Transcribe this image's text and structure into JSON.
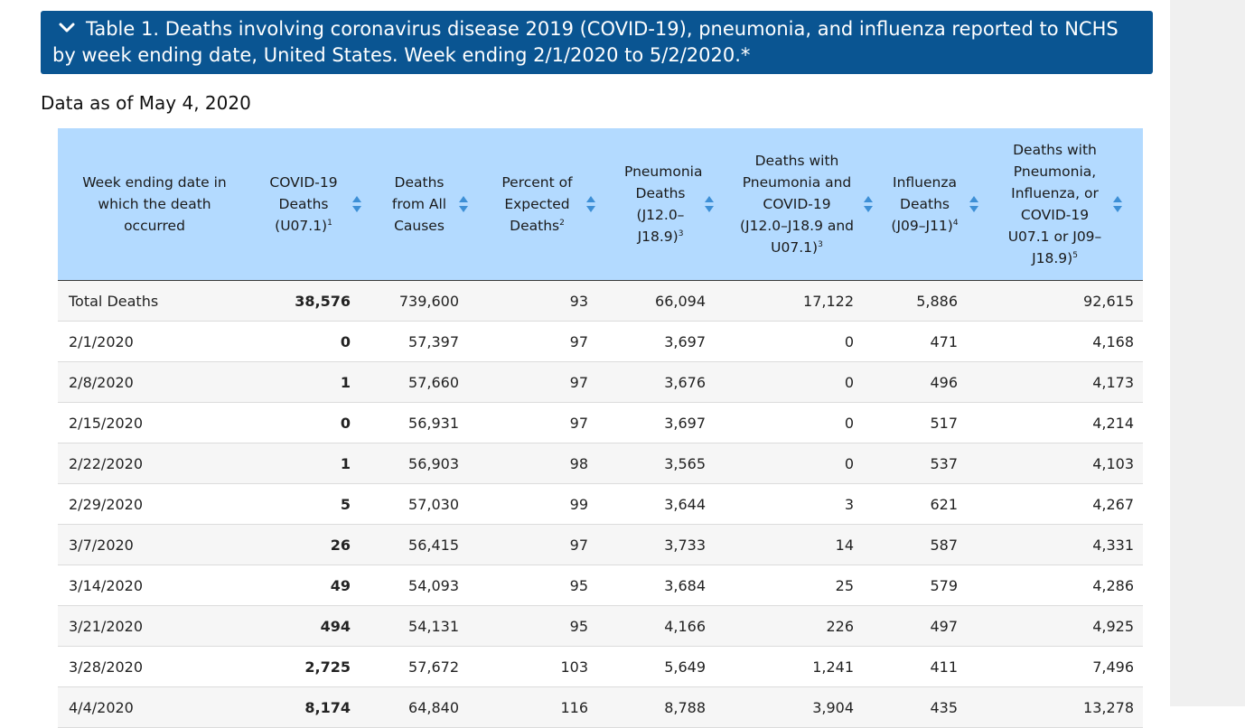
{
  "accordion": {
    "title": "Table 1. Deaths involving coronavirus disease 2019 (COVID-19), pneumonia, and influenza reported to NCHS by week ending date, United States. Week ending 2/1/2020 to 5/2/2020.*",
    "icon": "chevron-down-icon"
  },
  "data_as_of": "Data as of May 4, 2020",
  "table": {
    "headers": [
      {
        "text": "Week ending date in which the death occurred",
        "sup": "",
        "sortable": false
      },
      {
        "text": "COVID-19 Deaths (U07.1)",
        "sup": "1",
        "sortable": true
      },
      {
        "text": "Deaths from All Causes",
        "sup": "",
        "sortable": true
      },
      {
        "text": "Percent of Expected Deaths",
        "sup": "2",
        "sortable": true
      },
      {
        "text": "Pneumonia Deaths (J12.0–J18.9)",
        "sup": "3",
        "sortable": true
      },
      {
        "text": "Deaths with Pneumonia and COVID-19 (J12.0–J18.9 and U07.1)",
        "sup": "3",
        "sortable": true
      },
      {
        "text": "Influenza Deaths (J09–J11)",
        "sup": "4",
        "sortable": true
      },
      {
        "text": "Deaths with Pneumonia, Influenza, or COVID-19 U07.1 or J09–J18.9)",
        "sup": "5",
        "sortable": true
      }
    ],
    "rows": [
      [
        "Total Deaths",
        "38,576",
        "739,600",
        "93",
        "66,094",
        "17,122",
        "5,886",
        "92,615"
      ],
      [
        "2/1/2020",
        "0",
        "57,397",
        "97",
        "3,697",
        "0",
        "471",
        "4,168"
      ],
      [
        "2/8/2020",
        "1",
        "57,660",
        "97",
        "3,676",
        "0",
        "496",
        "4,173"
      ],
      [
        "2/15/2020",
        "0",
        "56,931",
        "97",
        "3,697",
        "0",
        "517",
        "4,214"
      ],
      [
        "2/22/2020",
        "1",
        "56,903",
        "98",
        "3,565",
        "0",
        "537",
        "4,103"
      ],
      [
        "2/29/2020",
        "5",
        "57,030",
        "99",
        "3,644",
        "3",
        "621",
        "4,267"
      ],
      [
        "3/7/2020",
        "26",
        "56,415",
        "97",
        "3,733",
        "14",
        "587",
        "4,331"
      ],
      [
        "3/14/2020",
        "49",
        "54,093",
        "95",
        "3,684",
        "25",
        "579",
        "4,286"
      ],
      [
        "3/21/2020",
        "494",
        "54,131",
        "95",
        "4,166",
        "226",
        "497",
        "4,925"
      ],
      [
        "3/28/2020",
        "2,725",
        "57,672",
        "103",
        "5,649",
        "1,241",
        "411",
        "7,496"
      ],
      [
        "4/4/2020",
        "8,174",
        "64,840",
        "116",
        "8,788",
        "3,904",
        "435",
        "13,278"
      ]
    ]
  },
  "colors": {
    "header_bar": "#0a5592",
    "table_head": "#b3daff",
    "sort_icon": "#3d8fd6"
  }
}
